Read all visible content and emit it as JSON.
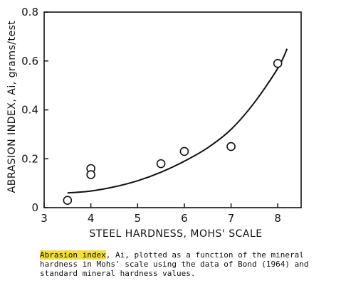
{
  "chart_data": {
    "type": "scatter",
    "title": "",
    "xlabel": "STEEL HARDNESS, MOHS' SCALE",
    "ylabel": "ABRASION INDEX, Ai, grams/test",
    "xlim": [
      3,
      8.5
    ],
    "ylim": [
      0,
      0.8
    ],
    "xticks": [
      "3",
      "4",
      "5",
      "6",
      "7",
      "8"
    ],
    "yticks": [
      "0",
      "0.2",
      "0.4",
      "0.6",
      "0.8"
    ],
    "points": [
      {
        "x": 3.5,
        "y": 0.03
      },
      {
        "x": 4.0,
        "y": 0.16
      },
      {
        "x": 4.0,
        "y": 0.135
      },
      {
        "x": 5.5,
        "y": 0.18
      },
      {
        "x": 6.0,
        "y": 0.23
      },
      {
        "x": 7.0,
        "y": 0.25
      },
      {
        "x": 8.0,
        "y": 0.59
      }
    ],
    "fit_curve": [
      {
        "x": 3.5,
        "y": 0.06
      },
      {
        "x": 4.0,
        "y": 0.068
      },
      {
        "x": 4.5,
        "y": 0.085
      },
      {
        "x": 5.0,
        "y": 0.11
      },
      {
        "x": 5.5,
        "y": 0.145
      },
      {
        "x": 6.0,
        "y": 0.19
      },
      {
        "x": 6.5,
        "y": 0.245
      },
      {
        "x": 7.0,
        "y": 0.32
      },
      {
        "x": 7.5,
        "y": 0.43
      },
      {
        "x": 8.0,
        "y": 0.57
      },
      {
        "x": 8.2,
        "y": 0.65
      }
    ],
    "grid": false,
    "colors": {
      "ink": "#111111",
      "highlight": "#f3df3a"
    }
  },
  "caption": {
    "highlight": "Abrasion index",
    "text": ", Ai, plotted as a function of the mineral hardness in Mohs' scale using the data of Bond (1964) and standard mineral hardness values."
  }
}
